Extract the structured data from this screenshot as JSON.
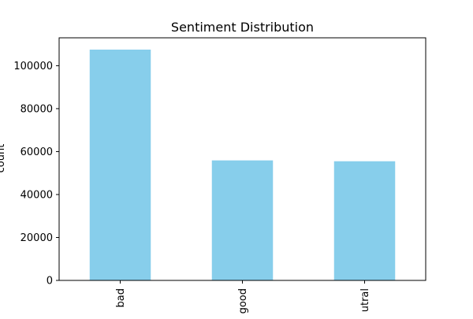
{
  "chart_data": {
    "type": "bar",
    "title": "Sentiment Distribution",
    "xlabel": "",
    "ylabel": "count",
    "categories": [
      "bad",
      "good",
      "utral"
    ],
    "values": [
      107500,
      55900,
      55500
    ],
    "ylim": [
      0,
      113000
    ],
    "yticks": [
      0,
      20000,
      40000,
      60000,
      80000,
      100000
    ],
    "ytick_labels": [
      "0",
      "20000",
      "40000",
      "60000",
      "80000",
      "100000"
    ],
    "bar_color": "#87ceeb",
    "grid": false,
    "legend": "none"
  }
}
